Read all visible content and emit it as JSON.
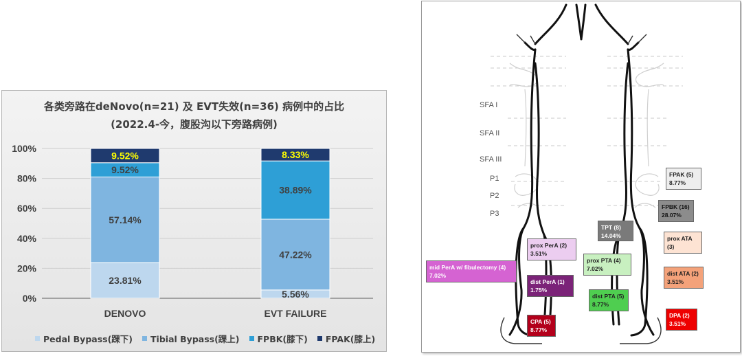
{
  "chart_data": {
    "type": "bar",
    "stacked": true,
    "title": "各类旁路在deNovo(n=21) 及 EVT失效(n=36) 病例中的占比",
    "subtitle": "(2022.4-今，腹股沟以下旁路病例)",
    "categories": [
      "DENOVO",
      "EVT FAILURE"
    ],
    "ylim": [
      0,
      100
    ],
    "yticks": [
      "0%",
      "20%",
      "40%",
      "60%",
      "80%",
      "100%"
    ],
    "grid": true,
    "legend_position": "bottom",
    "series": [
      {
        "name": "Pedal Bypass(踝下)",
        "values": [
          23.81,
          5.56
        ],
        "labels": [
          "23.81%",
          "5.56%"
        ],
        "color": "#bdd7ee",
        "label_color": "#404040"
      },
      {
        "name": "Tibial Bypass(踝上)",
        "values": [
          57.14,
          47.22
        ],
        "labels": [
          "57.14%",
          "47.22%"
        ],
        "color": "#7fb5e0",
        "label_color": "#404040"
      },
      {
        "name": "FPBK(膝下)",
        "values": [
          9.52,
          38.89
        ],
        "labels": [
          "9.52%",
          "38.89%"
        ],
        "color": "#2e9fd6",
        "label_color": "#404040"
      },
      {
        "name": "FPAK(膝上)",
        "values": [
          9.52,
          8.33
        ],
        "labels": [
          "9.52%",
          "8.33%"
        ],
        "color": "#1f3a6e",
        "label_color": "#ffff00"
      }
    ]
  },
  "diagram": {
    "levels": [
      {
        "id": "sfa1",
        "label": "SFA I"
      },
      {
        "id": "sfa2",
        "label": "SFA II"
      },
      {
        "id": "sfa3",
        "label": "SFA III"
      },
      {
        "id": "p1",
        "label": "P1"
      },
      {
        "id": "p2",
        "label": "P2"
      },
      {
        "id": "p3",
        "label": "P3"
      }
    ],
    "annotations": [
      {
        "id": "fpak",
        "line1": "FPAK (5)",
        "line2": "8.77%",
        "bg": "#eeeeee",
        "color": "#222222"
      },
      {
        "id": "fpbk",
        "line1": "FPBK (16)",
        "line2": "28.07%",
        "bg": "#8c8c8c",
        "color": "#111111"
      },
      {
        "id": "tpt",
        "line1": "TPT (8)",
        "line2": "14.04%",
        "bg": "#7a7a7a",
        "color": "#ffffff"
      },
      {
        "id": "prox-ata",
        "line1": "prox ATA",
        "line2": "(3)",
        "bg": "#fde3d3",
        "color": "#222222"
      },
      {
        "id": "prox-pera",
        "line1": "prox PerA (2)",
        "line2": "3.51%",
        "bg": "#eccdf0",
        "color": "#222222"
      },
      {
        "id": "prox-pta",
        "line1": "prox PTA (4)",
        "line2": "7.02%",
        "bg": "#c8f0c0",
        "color": "#222222"
      },
      {
        "id": "mid-pera",
        "line1": "mid PerA w/ fibulectomy (4)",
        "line2": "7.02%",
        "bg": "#d563d2",
        "color": "#ffffff"
      },
      {
        "id": "dist-ata",
        "line1": "dist ATA (2)",
        "line2": "3.51%",
        "bg": "#f4a27a",
        "color": "#222222"
      },
      {
        "id": "dist-pera",
        "line1": "dist PerA (1)",
        "line2": "1.75%",
        "bg": "#7b2378",
        "color": "#ffffff"
      },
      {
        "id": "dist-pta",
        "line1": "dist PTA (5)",
        "line2": "8.77%",
        "bg": "#4fce50",
        "color": "#222222"
      },
      {
        "id": "cpa",
        "line1": "CPA (5)",
        "line2": "8.77%",
        "bg": "#b3001b",
        "color": "#ffffff"
      },
      {
        "id": "dpa",
        "line1": "DPA (2)",
        "line2": "3.51%",
        "bg": "#ee0000",
        "color": "#ffffff"
      }
    ]
  }
}
